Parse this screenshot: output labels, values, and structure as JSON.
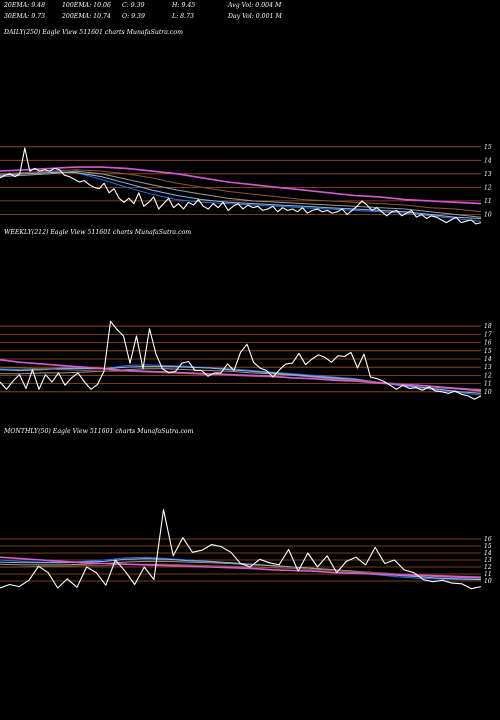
{
  "header": {
    "row1": [
      {
        "label": "20EMA: 9.48"
      },
      {
        "label": "100EMA: 10.06"
      },
      {
        "label": "C: 9.39"
      },
      {
        "label": "H: 9.45"
      },
      {
        "label": "Avg Vol: 0.004  M"
      }
    ],
    "row2": [
      {
        "label": "30EMA: 9.73"
      },
      {
        "label": "200EMA: 10.74"
      },
      {
        "label": "O: 9.39"
      },
      {
        "label": "L: 8.73"
      },
      {
        "label": "Day Vol: 0.001  M"
      }
    ]
  },
  "colors": {
    "background": "#000000",
    "price_line": "#ffffff",
    "level_line": "#a0521e",
    "ema_short": "#2d6ee8",
    "ema_mid": "#8fb8e8",
    "ema_long": "#d65ad6",
    "ema_brown": "#8b5a2b",
    "ema_gray": "#9a9a9a"
  },
  "chart_data": [
    {
      "type": "line",
      "title": "DAILY(250) Eagle   View  511601 charts MunafaSutra.com",
      "yticks": [
        15,
        14,
        13,
        12,
        11,
        10
      ],
      "ylim": [
        9.0,
        15.5
      ],
      "series": [
        {
          "role": "price",
          "color": "price_line",
          "values": [
            12.7,
            12.9,
            13.0,
            12.8,
            13.0,
            14.9,
            13.2,
            13.4,
            13.2,
            13.3,
            13.2,
            13.4,
            13.3,
            12.9,
            12.8,
            12.6,
            12.4,
            12.5,
            12.2,
            12.0,
            11.9,
            12.3,
            11.6,
            11.9,
            11.2,
            10.9,
            11.2,
            10.8,
            11.6,
            10.6,
            10.9,
            11.3,
            10.4,
            10.8,
            11.2,
            10.5,
            10.8,
            10.4,
            10.9,
            10.7,
            11.1,
            10.6,
            10.4,
            10.8,
            10.5,
            10.9,
            10.3,
            10.6,
            10.8,
            10.4,
            10.7,
            10.5,
            10.6,
            10.3,
            10.4,
            10.6,
            10.2,
            10.5,
            10.3,
            10.4,
            10.2,
            10.5,
            10.1,
            10.3,
            10.4,
            10.2,
            10.3,
            10.1,
            10.2,
            10.4,
            10.0,
            10.3,
            10.6,
            11.0,
            10.7,
            10.3,
            10.5,
            10.2,
            9.9,
            10.2,
            10.3,
            9.9,
            10.1,
            10.3,
            9.8,
            10.0,
            9.7,
            9.9,
            9.8,
            9.6,
            9.4,
            9.6,
            9.8,
            9.4,
            9.5,
            9.6,
            9.3,
            9.4
          ]
        },
        {
          "role": "ema",
          "color": "ema_short",
          "values": [
            12.9,
            13.1,
            13.2,
            13.1,
            12.6,
            12.0,
            11.5,
            11.1,
            10.9,
            10.8,
            10.7,
            10.6,
            10.5,
            10.4,
            10.3,
            10.2,
            10.1,
            9.9,
            9.7,
            9.5
          ]
        },
        {
          "role": "ema",
          "color": "ema_mid",
          "values": [
            12.9,
            13.0,
            13.1,
            13.1,
            12.8,
            12.3,
            11.8,
            11.4,
            11.1,
            10.9,
            10.8,
            10.7,
            10.6,
            10.5,
            10.4,
            10.3,
            10.2,
            10.0,
            9.8,
            9.7
          ]
        },
        {
          "role": "ema",
          "color": "ema_gray",
          "values": [
            12.8,
            12.9,
            13.0,
            13.2,
            13.0,
            12.6,
            12.2,
            11.8,
            11.5,
            11.2,
            11.0,
            10.9,
            10.8,
            10.7,
            10.6,
            10.5,
            10.4,
            10.2,
            10.0,
            9.8
          ]
        },
        {
          "role": "ema",
          "color": "ema_brown",
          "values": [
            13.0,
            13.1,
            13.2,
            13.3,
            13.2,
            13.0,
            12.7,
            12.3,
            12.0,
            11.7,
            11.5,
            11.3,
            11.1,
            11.0,
            10.9,
            10.8,
            10.7,
            10.5,
            10.4,
            10.2
          ]
        },
        {
          "role": "ema",
          "color": "ema_long",
          "values": [
            13.2,
            13.3,
            13.4,
            13.5,
            13.5,
            13.4,
            13.2,
            13.0,
            12.7,
            12.4,
            12.2,
            12.0,
            11.8,
            11.6,
            11.4,
            11.3,
            11.1,
            11.0,
            10.9,
            10.8
          ]
        }
      ]
    },
    {
      "type": "line",
      "title": "WEEKLY(212) Eagle   View  511601 charts MunafaSutra.com",
      "yticks": [
        18,
        17,
        16,
        15,
        14,
        13,
        12,
        11,
        10
      ],
      "ylim": [
        9.0,
        19.0
      ],
      "series": [
        {
          "role": "price",
          "color": "price_line",
          "values": [
            11.2,
            10.3,
            11.3,
            12.1,
            10.4,
            12.7,
            10.3,
            12.1,
            11.2,
            12.3,
            10.8,
            11.7,
            12.3,
            11.2,
            10.3,
            10.9,
            12.5,
            18.6,
            17.6,
            16.8,
            13.5,
            16.8,
            12.8,
            17.7,
            14.6,
            12.8,
            12.3,
            12.5,
            13.5,
            13.7,
            12.6,
            12.6,
            11.9,
            12.3,
            12.3,
            13.4,
            12.6,
            14.8,
            15.8,
            13.6,
            12.9,
            12.6,
            11.8,
            12.7,
            13.4,
            13.5,
            14.7,
            13.3,
            14.0,
            14.5,
            14.2,
            13.6,
            14.4,
            14.3,
            14.8,
            12.9,
            14.6,
            11.8,
            11.6,
            11.3,
            10.8,
            10.3,
            10.8,
            10.4,
            10.5,
            10.2,
            10.6,
            10.1,
            10.0,
            9.8,
            10.1,
            9.7,
            9.5,
            9.1,
            9.5
          ]
        },
        {
          "role": "ema",
          "color": "ema_short",
          "values": [
            12.8,
            12.7,
            12.8,
            12.9,
            12.9,
            12.8,
            13.2,
            13.3,
            13.2,
            13.1,
            12.9,
            12.8,
            12.6,
            12.4,
            12.2,
            12.0,
            11.8,
            11.6,
            11.2,
            10.8,
            10.5,
            10.2,
            9.9,
            9.6
          ]
        },
        {
          "role": "ema",
          "color": "ema_mid",
          "values": [
            12.7,
            12.6,
            12.7,
            12.8,
            12.8,
            12.8,
            13.0,
            13.1,
            13.1,
            13.0,
            12.9,
            12.7,
            12.5,
            12.3,
            12.1,
            11.9,
            11.7,
            11.5,
            11.2,
            10.9,
            10.6,
            10.3,
            10.0,
            9.8
          ]
        },
        {
          "role": "ema",
          "color": "ema_gray",
          "values": [
            12.2,
            12.2,
            12.3,
            12.3,
            12.4,
            12.5,
            12.7,
            12.8,
            12.8,
            12.7,
            12.6,
            12.5,
            12.3,
            12.2,
            12.0,
            11.8,
            11.6,
            11.4,
            11.2,
            11.0,
            10.8,
            10.5,
            10.3,
            10.1
          ]
        },
        {
          "role": "ema",
          "color": "ema_brown",
          "values": [
            13.0,
            12.9,
            12.8,
            12.7,
            12.6,
            12.5,
            12.5,
            12.4,
            12.3,
            12.2,
            12.1,
            12.0,
            11.9,
            11.8,
            11.7,
            11.6,
            11.5,
            11.4,
            11.2,
            11.0,
            10.8,
            10.6,
            10.4,
            10.3
          ]
        },
        {
          "role": "ema",
          "color": "ema_long",
          "values": [
            13.9,
            13.6,
            13.4,
            13.2,
            13.0,
            12.8,
            12.6,
            12.5,
            12.4,
            12.3,
            12.2,
            12.1,
            12.0,
            11.9,
            11.7,
            11.6,
            11.4,
            11.3,
            11.1,
            10.9,
            10.8,
            10.6,
            10.4,
            10.2
          ]
        }
      ]
    },
    {
      "type": "line",
      "title": "MONTHLY(50) Eagle   View  511601 charts MunafaSutra.com",
      "yticks": [
        16,
        15,
        14,
        13,
        12,
        11,
        10
      ],
      "ylim": [
        8.0,
        17.0
      ],
      "series": [
        {
          "role": "price",
          "color": "price_line",
          "values": [
            9.0,
            9.5,
            9.2,
            10.1,
            12.1,
            11.2,
            9.0,
            10.3,
            9.1,
            12.0,
            11.2,
            9.4,
            13.0,
            11.4,
            9.5,
            12.0,
            10.2,
            20.2,
            13.6,
            16.2,
            14.1,
            14.4,
            15.2,
            14.9,
            14.1,
            12.5,
            12.0,
            13.1,
            12.6,
            12.3,
            14.5,
            11.4,
            14.0,
            12.0,
            13.6,
            11.2,
            12.8,
            13.4,
            12.3,
            14.8,
            12.5,
            13.0,
            11.6,
            11.2,
            10.2,
            9.9,
            10.1,
            9.7,
            9.6,
            8.9,
            9.2
          ]
        },
        {
          "role": "ema",
          "color": "ema_short",
          "values": [
            13.0,
            12.8,
            12.7,
            12.7,
            12.8,
            13.0,
            13.3,
            13.4,
            13.2,
            13.0,
            12.8,
            12.6,
            12.4,
            12.2,
            12.0,
            11.8,
            11.5,
            11.2,
            10.9,
            10.6,
            10.4,
            10.3,
            10.2,
            10.2
          ]
        },
        {
          "role": "ema",
          "color": "ema_mid",
          "values": [
            12.7,
            12.6,
            12.6,
            12.6,
            12.7,
            12.8,
            13.1,
            13.2,
            13.1,
            12.9,
            12.8,
            12.6,
            12.4,
            12.2,
            12.0,
            11.8,
            11.6,
            11.3,
            11.0,
            10.8,
            10.6,
            10.4,
            10.3,
            10.2
          ]
        },
        {
          "role": "ema",
          "color": "ema_gray",
          "values": [
            12.4,
            12.3,
            12.3,
            12.3,
            12.4,
            12.5,
            12.7,
            12.8,
            12.8,
            12.7,
            12.6,
            12.5,
            12.3,
            12.2,
            12.0,
            11.8,
            11.6,
            11.4,
            11.2,
            11.0,
            10.8,
            10.6,
            10.5,
            10.4
          ]
        },
        {
          "role": "ema",
          "color": "ema_brown",
          "values": [
            12.0,
            12.0,
            12.1,
            12.1,
            12.2,
            12.2,
            12.4,
            12.4,
            12.4,
            12.3,
            12.2,
            12.1,
            12.0,
            11.9,
            11.8,
            11.6,
            11.5,
            11.3,
            11.2,
            11.0,
            10.9,
            10.8,
            10.7,
            10.6
          ]
        },
        {
          "role": "ema",
          "color": "ema_long",
          "values": [
            13.4,
            13.2,
            13.0,
            12.8,
            12.6,
            12.5,
            12.4,
            12.3,
            12.2,
            12.1,
            12.0,
            11.9,
            11.8,
            11.6,
            11.5,
            11.4,
            11.2,
            11.1,
            11.0,
            10.9,
            10.8,
            10.7,
            10.6,
            10.5
          ]
        }
      ]
    }
  ]
}
